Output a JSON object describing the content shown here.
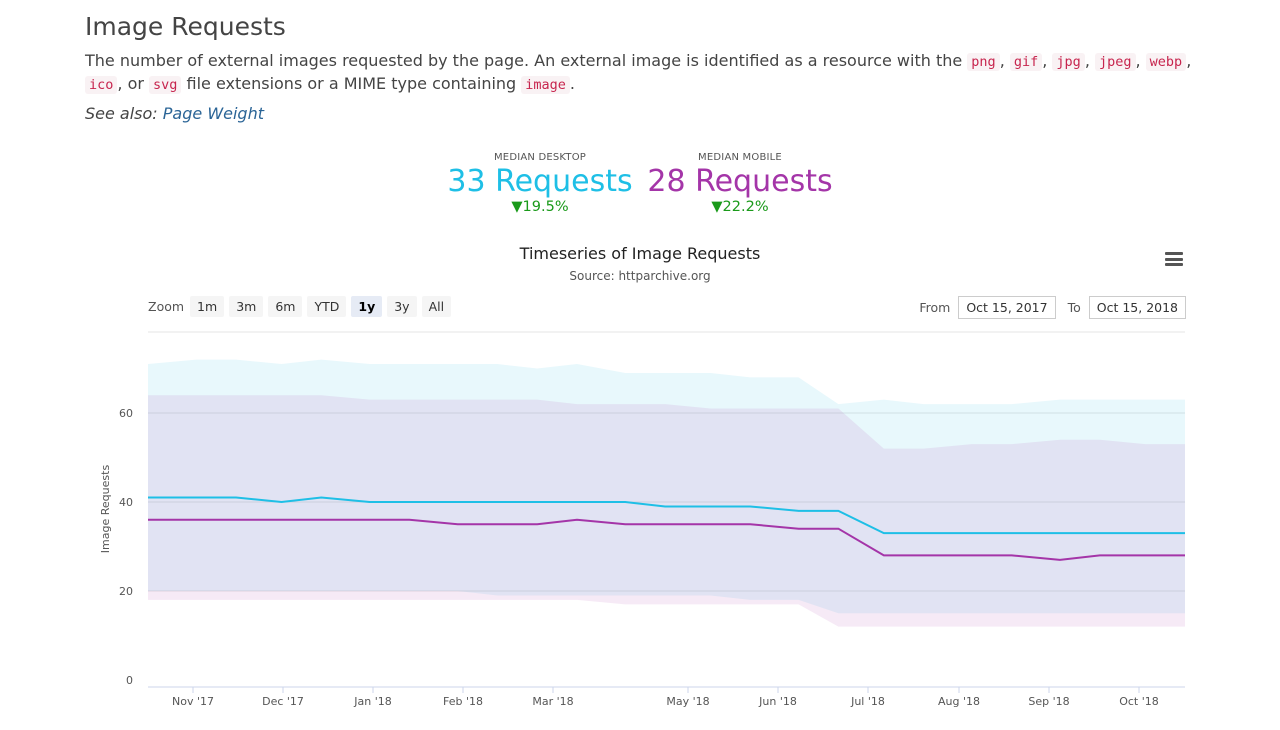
{
  "header": {
    "title": "Image Requests",
    "desc_before": "The number of external images requested by the page. An external image is identified as a resource with the ",
    "ext": [
      "png",
      "gif",
      "jpg",
      "jpeg",
      "webp",
      "ico",
      "svg"
    ],
    "desc_mid": " file extensions or a MIME type containing ",
    "mime": "image",
    "desc_end": ".",
    "sep_comma": ", ",
    "sep_or": ", or ",
    "see_also_label": "See also: ",
    "see_also_link": "Page Weight"
  },
  "stats": {
    "desktop": {
      "label": "MEDIAN DESKTOP",
      "value": "33 Requests",
      "change": "▼19.5%"
    },
    "mobile": {
      "label": "MEDIAN MOBILE",
      "value": "28 Requests",
      "change": "▼22.2%"
    }
  },
  "chart": {
    "title": "Timeseries of Image Requests",
    "subtitle": "Source: httparchive.org",
    "zoom_label": "Zoom",
    "zoom_buttons": [
      "1m",
      "3m",
      "6m",
      "YTD",
      "1y",
      "3y",
      "All"
    ],
    "zoom_active": "1y",
    "from_label": "From",
    "from_value": "Oct 15, 2017",
    "to_label": "To",
    "to_value": "Oct 15, 2018",
    "menu_icon": "hamburger-menu-icon"
  },
  "chart_data": {
    "type": "area",
    "title": "Timeseries of Image Requests",
    "subtitle": "Source: httparchive.org",
    "ylabel": "Image Requests",
    "ylim": [
      0,
      75
    ],
    "yticks": [
      0,
      20,
      40,
      60
    ],
    "xticks": [
      "Nov '17",
      "Dec '17",
      "Jan '18",
      "Feb '18",
      "Mar '18",
      "May '18",
      "Jun '18",
      "Jul '18",
      "Aug '18",
      "Sep '18",
      "Oct '18"
    ],
    "grid": true,
    "colors": {
      "desktop": "#1ebfe6",
      "mobile": "#a435a8"
    },
    "x": [
      "2017-10-15",
      "2017-11-01",
      "2017-11-15",
      "2017-12-01",
      "2017-12-15",
      "2018-01-01",
      "2018-01-15",
      "2018-02-01",
      "2018-02-15",
      "2018-03-01",
      "2018-03-15",
      "2018-04-01",
      "2018-04-15",
      "2018-05-01",
      "2018-05-15",
      "2018-06-01",
      "2018-06-15",
      "2018-07-01",
      "2018-07-15",
      "2018-08-01",
      "2018-08-15",
      "2018-09-01",
      "2018-09-15",
      "2018-10-01",
      "2018-10-15"
    ],
    "series": [
      {
        "values": [
          41,
          41,
          41,
          40,
          41,
          40,
          40,
          40,
          40,
          40,
          40,
          40,
          39,
          39,
          39,
          38,
          38,
          33,
          33,
          33,
          33,
          33,
          33,
          33,
          33
        ]
      },
      {
        "values": [
          36,
          36,
          36,
          36,
          36,
          36,
          36,
          35,
          35,
          35,
          36,
          35,
          35,
          35,
          35,
          34,
          34,
          28,
          28,
          28,
          28,
          27,
          28,
          28,
          28
        ]
      }
    ],
    "bands": [
      {
        "series": 0,
        "upper": [
          71,
          72,
          72,
          71,
          72,
          71,
          71,
          71,
          71,
          70,
          71,
          69,
          69,
          69,
          68,
          68,
          62,
          63,
          62,
          62,
          62,
          63,
          63,
          63,
          63
        ],
        "lower": [
          20,
          20,
          20,
          20,
          20,
          20,
          20,
          20,
          19,
          19,
          19,
          19,
          19,
          19,
          18,
          18,
          15,
          15,
          15,
          15,
          15,
          15,
          15,
          15,
          15
        ]
      },
      {
        "series": 1,
        "upper": [
          64,
          64,
          64,
          64,
          64,
          63,
          63,
          63,
          63,
          63,
          62,
          62,
          62,
          61,
          61,
          61,
          61,
          52,
          52,
          53,
          53,
          54,
          54,
          53,
          53
        ],
        "lower": [
          18,
          18,
          18,
          18,
          18,
          18,
          18,
          18,
          18,
          18,
          18,
          17,
          17,
          17,
          17,
          17,
          12,
          12,
          12,
          12,
          12,
          12,
          12,
          12,
          12
        ]
      }
    ]
  }
}
